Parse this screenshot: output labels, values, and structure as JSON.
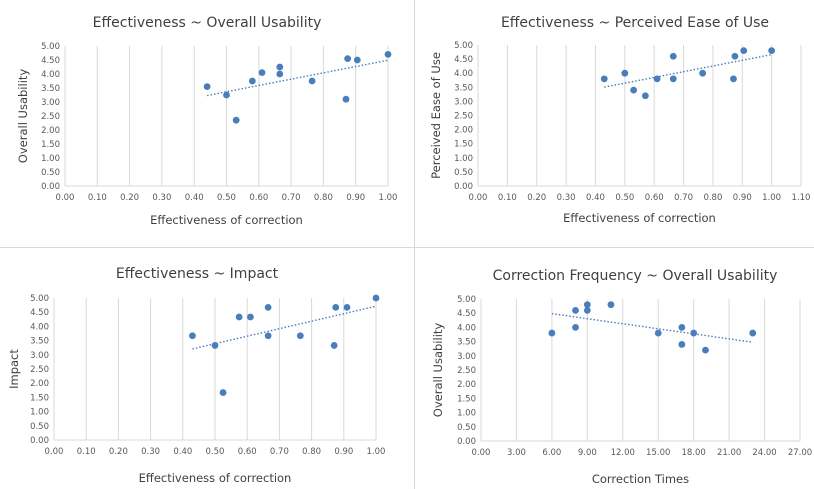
{
  "colors": {
    "point": "#4a7ebb",
    "grid": "#d9d9d9",
    "text": "#404040",
    "tick": "#595959",
    "divider": "#d9d9d9"
  },
  "chart_data": [
    {
      "type": "scatter",
      "title": "Effectiveness ~ Overall Usability",
      "xlabel": "Effectiveness of correction",
      "ylabel": "Overall Usability",
      "xlim": [
        0,
        1
      ],
      "ylim": [
        0,
        5
      ],
      "xticks": [
        "0.00",
        "0.10",
        "0.20",
        "0.30",
        "0.40",
        "0.50",
        "0.60",
        "0.70",
        "0.80",
        "0.90",
        "1.00"
      ],
      "yticks": [
        "0.00",
        "0.50",
        "1.00",
        "1.50",
        "2.00",
        "2.50",
        "3.00",
        "3.50",
        "4.00",
        "4.50",
        "5.00"
      ],
      "grid": "vertical",
      "trendline": "linear, dotted",
      "points": [
        {
          "x": 0.44,
          "y": 3.55
        },
        {
          "x": 0.5,
          "y": 3.25
        },
        {
          "x": 0.53,
          "y": 2.35
        },
        {
          "x": 0.58,
          "y": 3.75
        },
        {
          "x": 0.61,
          "y": 4.05
        },
        {
          "x": 0.665,
          "y": 4.25
        },
        {
          "x": 0.665,
          "y": 4.0
        },
        {
          "x": 0.765,
          "y": 3.75
        },
        {
          "x": 0.87,
          "y": 3.1
        },
        {
          "x": 0.875,
          "y": 4.55
        },
        {
          "x": 0.905,
          "y": 4.5
        },
        {
          "x": 1.0,
          "y": 4.7
        }
      ]
    },
    {
      "type": "scatter",
      "title": "Effectiveness ~ Perceived Ease of Use",
      "xlabel": "Effectiveness of correction",
      "ylabel": "Perceived Ease of Use",
      "xlim": [
        0,
        1.1
      ],
      "ylim": [
        0,
        5
      ],
      "xticks": [
        "0.00",
        "0.10",
        "0.20",
        "0.30",
        "0.40",
        "0.50",
        "0.60",
        "0.70",
        "0.80",
        "0.90",
        "1.00",
        "1.10"
      ],
      "yticks": [
        "0.00",
        "0.50",
        "1.00",
        "1.50",
        "2.00",
        "2.50",
        "3.00",
        "3.50",
        "4.00",
        "4.50",
        "5.00"
      ],
      "grid": "vertical",
      "trendline": "linear, dotted",
      "points": [
        {
          "x": 0.43,
          "y": 3.8
        },
        {
          "x": 0.5,
          "y": 4.0
        },
        {
          "x": 0.53,
          "y": 3.4
        },
        {
          "x": 0.57,
          "y": 3.2
        },
        {
          "x": 0.61,
          "y": 3.8
        },
        {
          "x": 0.665,
          "y": 4.6
        },
        {
          "x": 0.665,
          "y": 3.8
        },
        {
          "x": 0.765,
          "y": 4.0
        },
        {
          "x": 0.87,
          "y": 3.8
        },
        {
          "x": 0.875,
          "y": 4.6
        },
        {
          "x": 0.905,
          "y": 4.8
        },
        {
          "x": 1.0,
          "y": 4.8
        }
      ]
    },
    {
      "type": "scatter",
      "title": "Effectiveness ~ Impact",
      "xlabel": "Effectiveness of correction",
      "ylabel": "Impact",
      "xlim": [
        0,
        1
      ],
      "ylim": [
        0,
        5
      ],
      "xticks": [
        "0.00",
        "0.10",
        "0.20",
        "0.30",
        "0.40",
        "0.50",
        "0.60",
        "0.70",
        "0.80",
        "0.90",
        "1.00"
      ],
      "yticks": [
        "0.00",
        "0.50",
        "1.00",
        "1.50",
        "2.00",
        "2.50",
        "3.00",
        "3.50",
        "4.00",
        "4.50",
        "5.00"
      ],
      "grid": "vertical",
      "trendline": "linear, dotted",
      "points": [
        {
          "x": 0.43,
          "y": 3.67
        },
        {
          "x": 0.5,
          "y": 3.33
        },
        {
          "x": 0.525,
          "y": 1.67
        },
        {
          "x": 0.575,
          "y": 4.33
        },
        {
          "x": 0.61,
          "y": 4.33
        },
        {
          "x": 0.665,
          "y": 4.67
        },
        {
          "x": 0.665,
          "y": 3.67
        },
        {
          "x": 0.765,
          "y": 3.67
        },
        {
          "x": 0.87,
          "y": 3.33
        },
        {
          "x": 0.875,
          "y": 4.67
        },
        {
          "x": 0.91,
          "y": 4.67
        },
        {
          "x": 1.0,
          "y": 5.0
        }
      ]
    },
    {
      "type": "scatter",
      "title": "Correction Frequency ~ Overall Usability",
      "xlabel": "Correction Times",
      "ylabel": "Overall Usability",
      "xlim": [
        0,
        27
      ],
      "ylim": [
        0,
        5
      ],
      "xticks": [
        "0.00",
        "3.00",
        "6.00",
        "9.00",
        "12.00",
        "15.00",
        "18.00",
        "21.00",
        "24.00",
        "27.00"
      ],
      "yticks": [
        "0.00",
        "0.50",
        "1.00",
        "1.50",
        "2.00",
        "2.50",
        "3.00",
        "3.50",
        "4.00",
        "4.50",
        "5.00"
      ],
      "grid": "vertical",
      "trendline": "linear, dotted",
      "points": [
        {
          "x": 6,
          "y": 3.8
        },
        {
          "x": 8,
          "y": 4.6
        },
        {
          "x": 8,
          "y": 4.0
        },
        {
          "x": 9,
          "y": 4.8
        },
        {
          "x": 9,
          "y": 4.6
        },
        {
          "x": 11,
          "y": 4.8
        },
        {
          "x": 15,
          "y": 3.8
        },
        {
          "x": 17,
          "y": 4.0
        },
        {
          "x": 17,
          "y": 3.4
        },
        {
          "x": 18,
          "y": 3.8
        },
        {
          "x": 19,
          "y": 3.2
        },
        {
          "x": 23,
          "y": 3.8
        }
      ]
    }
  ]
}
